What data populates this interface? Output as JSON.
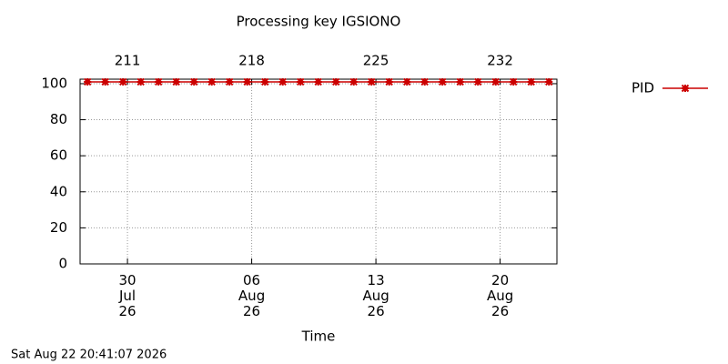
{
  "chart_data": {
    "type": "line",
    "title": "Processing key IGSIONO",
    "x_label": "Time",
    "footer": "Sat Aug 22 20:41:07 2026",
    "x": [
      208.75,
      209.75,
      210.75,
      211.75,
      212.75,
      213.75,
      214.75,
      215.75,
      216.75,
      217.75,
      218.75,
      219.75,
      220.75,
      221.75,
      222.75,
      223.75,
      224.75,
      225.75,
      226.75,
      227.75,
      228.75,
      229.75,
      230.75,
      231.75,
      232.75,
      233.75,
      234.75
    ],
    "series": [
      {
        "name": "PID",
        "color": "#cc0000",
        "values": [
          101,
          101,
          101,
          101,
          101,
          101,
          101,
          101,
          101,
          101,
          101,
          101,
          101,
          101,
          101,
          101,
          101,
          101,
          101,
          101,
          101,
          101,
          101,
          101,
          101,
          101,
          101
        ]
      }
    ],
    "xlim": [
      208.33,
      235.2
    ],
    "xticks": [
      {
        "value": 211,
        "label": "30 Jul 26"
      },
      {
        "value": 218,
        "label": "06 Aug 26"
      },
      {
        "value": 225,
        "label": "13 Aug 26"
      },
      {
        "value": 232,
        "label": "20 Aug 26"
      }
    ],
    "x2ticks": [
      211,
      218,
      225,
      232
    ],
    "ylim": [
      0,
      102.5
    ],
    "yticks": [
      0,
      20,
      40,
      60,
      80,
      100
    ],
    "grid": true,
    "legend": "right"
  }
}
